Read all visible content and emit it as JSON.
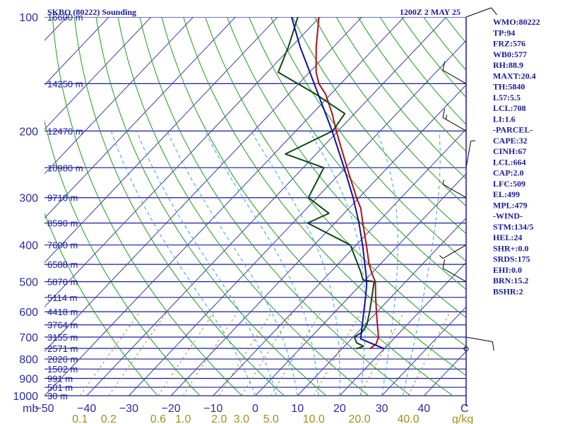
{
  "header": {
    "station": "SKBO (80222) Sounding",
    "time": "1200Z  2 MAY 25"
  },
  "indices": [
    "WMO:80222",
    "TP:94",
    "FRZ:576",
    "WB0:577",
    "RH:88.9",
    "MAXT:20.4",
    "TH:5840",
    "L57:5.5",
    "LCL:708",
    "LI:1.6",
    "-PARCEL-",
    "CAPE:32",
    "CINH:67",
    "LCL:664",
    "CAP:2.0",
    "LFC:509",
    "EL:499",
    "MPL:479",
    "-WIND-",
    "STM:134/5",
    "HEL:24",
    "SHR+:0.0",
    "SRDS:175",
    "EHI:0.0",
    "BRN:15.2",
    "BSHR:2"
  ],
  "colors": {
    "isobar": "#1a1a9e",
    "isotherm": "#3a3aa8",
    "dry_adiabat": "#18a018",
    "moist_adiabat": "#3aa0d0",
    "mixing_ratio": "#a0901e",
    "temperature": "#b01010",
    "dewpoint": "#0c4a0c",
    "parcel": "#1010a0",
    "wind_barb": "#000000"
  },
  "chart_data": {
    "type": "line",
    "chart_kind": "Skew-T log-P sounding",
    "x_unit_label": "C",
    "y_unit_label": "mb",
    "y_scale": "log",
    "xlim": [
      -50,
      50
    ],
    "ylim": [
      1000,
      100
    ],
    "x_ticks": [
      -50,
      -40,
      -30,
      -20,
      -10,
      0,
      10,
      20,
      30,
      40
    ],
    "x_tick_labels": [
      "−50",
      "−40",
      "−30",
      "−20",
      "−10",
      "0",
      "10",
      "20",
      "30",
      "40"
    ],
    "pressure_ticks": [
      100,
      200,
      300,
      400,
      500,
      600,
      700,
      800,
      900,
      1000
    ],
    "pressure_tick_labels": [
      "100",
      "200",
      "300",
      "400",
      "500",
      "600",
      "700",
      "800",
      "900",
      "1000"
    ],
    "mixing_ratio_unit": "g/kg",
    "mixing_ratio_labels": [
      {
        "text": "0.1",
        "value": 0.1
      },
      {
        "text": "0.2",
        "value": 0.2
      },
      {
        "text": "0.6",
        "value": 0.6
      },
      {
        "text": "1.0",
        "value": 1.0
      },
      {
        "text": "2.0",
        "value": 2.0
      },
      {
        "text": "3.0",
        "value": 3.0
      },
      {
        "text": "5.0",
        "value": 5.0
      },
      {
        "text": "10.0",
        "value": 10.0
      },
      {
        "text": "20.0",
        "value": 20.0
      },
      {
        "text": "40.0",
        "value": 40.0
      }
    ],
    "height_levels": [
      {
        "label": "16600 m",
        "p": 100
      },
      {
        "label": "14250 m",
        "p": 150
      },
      {
        "label": "12470 m",
        "p": 200
      },
      {
        "label": "10980 m",
        "p": 250
      },
      {
        "label": "9710 m",
        "p": 300
      },
      {
        "label": "8590 m",
        "p": 350
      },
      {
        "label": "7600 m",
        "p": 400
      },
      {
        "label": "6588 m",
        "p": 450
      },
      {
        "label": "5870 m",
        "p": 500
      },
      {
        "label": "5114 m",
        "p": 550
      },
      {
        "label": "4418 m",
        "p": 600
      },
      {
        "label": "3764 m",
        "p": 650
      },
      {
        "label": "3155 m",
        "p": 700
      },
      {
        "label": "2571 m",
        "p": 750
      },
      {
        "label": "2020 m",
        "p": 800
      },
      {
        "label": "1502 m",
        "p": 850
      },
      {
        "label": "991 m",
        "p": 900
      },
      {
        "label": "501 m",
        "p": 950
      },
      {
        "label": "30 m",
        "p": 1000
      }
    ],
    "series": [
      {
        "key": "temperature",
        "points": [
          {
            "p": 752,
            "t": 16.6
          },
          {
            "p": 730,
            "t": 17.0
          },
          {
            "p": 700,
            "t": 16.0
          },
          {
            "p": 650,
            "t": 13.0
          },
          {
            "p": 600,
            "t": 9.8
          },
          {
            "p": 550,
            "t": 6.4
          },
          {
            "p": 500,
            "t": 2.8
          },
          {
            "p": 480,
            "t": 0.6
          },
          {
            "p": 450,
            "t": -2.6
          },
          {
            "p": 400,
            "t": -7.6
          },
          {
            "p": 350,
            "t": -13.4
          },
          {
            "p": 320,
            "t": -17.2
          },
          {
            "p": 300,
            "t": -20.6
          },
          {
            "p": 250,
            "t": -29.6
          },
          {
            "p": 220,
            "t": -35.8
          },
          {
            "p": 200,
            "t": -40.4
          },
          {
            "p": 180,
            "t": -45.3
          },
          {
            "p": 160,
            "t": -51.2
          },
          {
            "p": 150,
            "t": -55.2
          },
          {
            "p": 140,
            "t": -58.4
          },
          {
            "p": 120,
            "t": -64.1
          },
          {
            "p": 100,
            "t": -70.2
          }
        ]
      },
      {
        "key": "dewpoint",
        "points": [
          {
            "p": 752,
            "t": 13.3
          },
          {
            "p": 740,
            "t": 14.5
          },
          {
            "p": 725,
            "t": 12.1
          },
          {
            "p": 700,
            "t": 10.3
          },
          {
            "p": 680,
            "t": 11.0
          },
          {
            "p": 650,
            "t": 10.5
          },
          {
            "p": 600,
            "t": 8.2
          },
          {
            "p": 550,
            "t": 5.5
          },
          {
            "p": 500,
            "t": 2.5
          },
          {
            "p": 495,
            "t": -0.5
          },
          {
            "p": 470,
            "t": -3.0
          },
          {
            "p": 400,
            "t": -11.4
          },
          {
            "p": 350,
            "t": -26.5
          },
          {
            "p": 330,
            "t": -23.6
          },
          {
            "p": 300,
            "t": -32.0
          },
          {
            "p": 250,
            "t": -35.1
          },
          {
            "p": 230,
            "t": -47.3
          },
          {
            "p": 200,
            "t": -41.3
          },
          {
            "p": 180,
            "t": -42.3
          },
          {
            "p": 160,
            "t": -53.5
          },
          {
            "p": 140,
            "t": -67.4
          },
          {
            "p": 120,
            "t": -70.7
          },
          {
            "p": 100,
            "t": -75.2
          }
        ]
      },
      {
        "key": "parcel",
        "points": [
          {
            "p": 752,
            "t": 20.1
          },
          {
            "p": 708,
            "t": 12.2
          },
          {
            "p": 650,
            "t": 9.4
          },
          {
            "p": 600,
            "t": 6.8
          },
          {
            "p": 550,
            "t": 4.0
          },
          {
            "p": 509,
            "t": 1.4
          },
          {
            "p": 480,
            "t": -0.9
          },
          {
            "p": 450,
            "t": -3.6
          },
          {
            "p": 400,
            "t": -8.5
          },
          {
            "p": 350,
            "t": -14.3
          },
          {
            "p": 300,
            "t": -21.4
          },
          {
            "p": 250,
            "t": -30.3
          },
          {
            "p": 200,
            "t": -41.4
          },
          {
            "p": 150,
            "t": -56.3
          },
          {
            "p": 120,
            "t": -67.9
          },
          {
            "p": 100,
            "t": -76.7
          }
        ]
      }
    ],
    "wind_levels": [
      {
        "p": 100,
        "dir": 70,
        "kt": 10
      },
      {
        "p": 150,
        "dir": 300,
        "kt": 10
      },
      {
        "p": 200,
        "dir": 300,
        "kt": 15
      },
      {
        "p": 250,
        "dir": 10,
        "kt": 5
      },
      {
        "p": 300,
        "dir": 300,
        "kt": 5
      },
      {
        "p": 400,
        "dir": 240,
        "kt": 5
      },
      {
        "p": 500,
        "dir": 300,
        "kt": 10
      },
      {
        "p": 700,
        "dir": 100,
        "kt": 10
      },
      {
        "p": 752,
        "dir": 0,
        "kt": 0
      }
    ]
  }
}
